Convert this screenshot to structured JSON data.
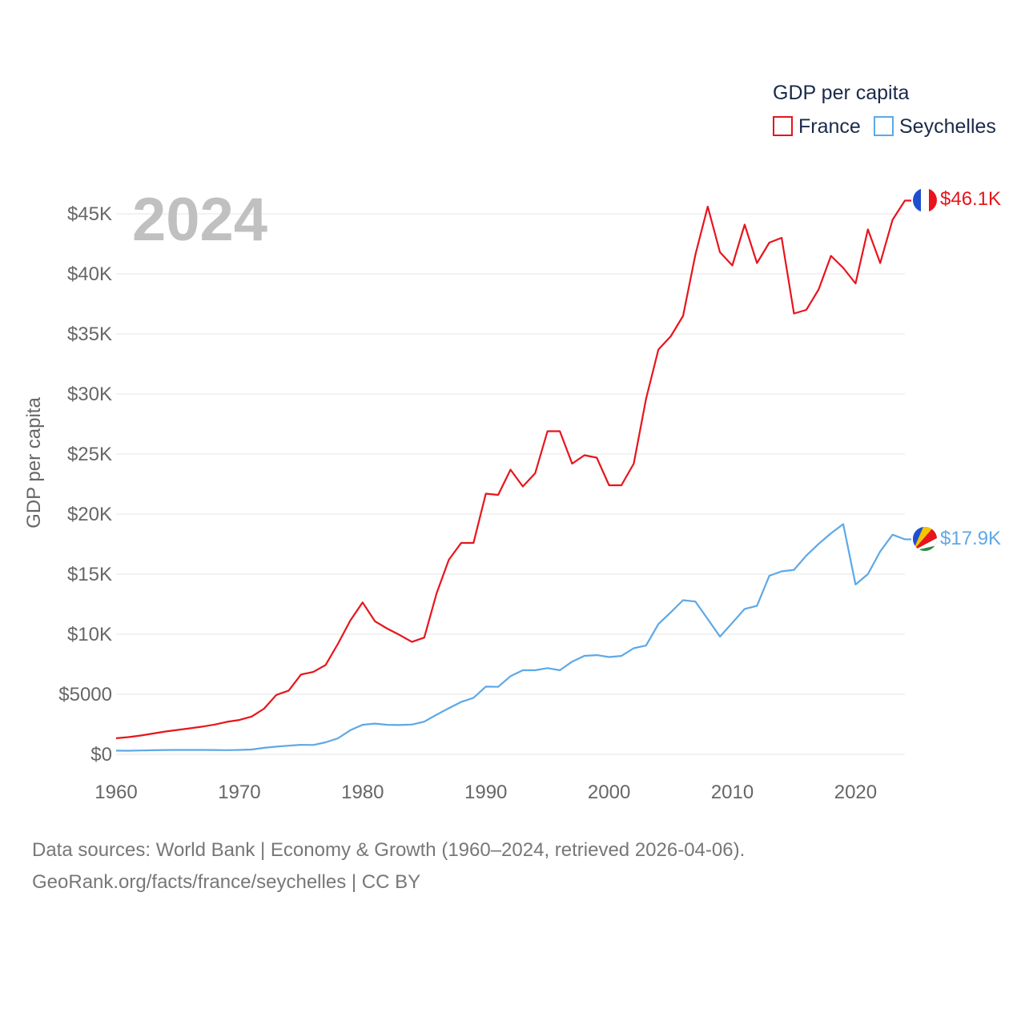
{
  "colors": {
    "france": "#e8141c",
    "seychelles": "#5ea8e6",
    "grid": "#e6e6e6",
    "tick": "#666666"
  },
  "legend": {
    "title": "GDP per capita"
  },
  "year_label": "2024",
  "footer": {
    "line1": "Data sources: World Bank | Economy & Growth (1960–2024, retrieved 2026-04-06).",
    "line2": "GeoRank.org/facts/france/seychelles | CC BY"
  },
  "chart_data": {
    "type": "line",
    "title": "",
    "xlabel": "",
    "ylabel": "GDP per capita",
    "xlim": [
      1960,
      2024
    ],
    "ylim": [
      0,
      47000
    ],
    "x_ticks": [
      1960,
      1970,
      1980,
      1990,
      2000,
      2010,
      2020
    ],
    "y_ticks": [
      {
        "value": 0,
        "label": "$0"
      },
      {
        "value": 5000,
        "label": "$5000"
      },
      {
        "value": 10000,
        "label": "$10K"
      },
      {
        "value": 15000,
        "label": "$15K"
      },
      {
        "value": 20000,
        "label": "$20K"
      },
      {
        "value": 25000,
        "label": "$25K"
      },
      {
        "value": 30000,
        "label": "$30K"
      },
      {
        "value": 35000,
        "label": "$35K"
      },
      {
        "value": 40000,
        "label": "$40K"
      },
      {
        "value": 45000,
        "label": "$45K"
      }
    ],
    "x": [
      1960,
      1961,
      1962,
      1963,
      1964,
      1965,
      1966,
      1967,
      1968,
      1969,
      1970,
      1971,
      1972,
      1973,
      1974,
      1975,
      1976,
      1977,
      1978,
      1979,
      1980,
      1981,
      1982,
      1983,
      1984,
      1985,
      1986,
      1987,
      1988,
      1989,
      1990,
      1991,
      1992,
      1993,
      1994,
      1995,
      1996,
      1997,
      1998,
      1999,
      2000,
      2001,
      2002,
      2003,
      2004,
      2005,
      2006,
      2007,
      2008,
      2009,
      2010,
      2011,
      2012,
      2013,
      2014,
      2015,
      2016,
      2017,
      2018,
      2019,
      2020,
      2021,
      2022,
      2023,
      2024
    ],
    "series": [
      {
        "name": "France",
        "color": "#e8141c",
        "end_label": "$46.1K",
        "values": [
          1340,
          1430,
          1570,
          1730,
          1900,
          2030,
          2170,
          2310,
          2480,
          2710,
          2860,
          3150,
          3800,
          4950,
          5310,
          6650,
          6860,
          7440,
          9200,
          11130,
          12650,
          11080,
          10470,
          9940,
          9360,
          9720,
          13400,
          16200,
          17600,
          17600,
          21700,
          21600,
          23700,
          22300,
          23400,
          26900,
          26900,
          24200,
          24900,
          24700,
          22400,
          22400,
          24200,
          29600,
          33700,
          34800,
          36500,
          41600,
          45600,
          41800,
          40700,
          44100,
          40900,
          42600,
          43000,
          36700,
          37000,
          38700,
          41500,
          40500,
          39200,
          43700,
          40900,
          44500,
          46100
        ]
      },
      {
        "name": "Seychelles",
        "color": "#5ea8e6",
        "end_label": "$17.9K",
        "values": [
          310,
          300,
          320,
          340,
          360,
          370,
          370,
          370,
          360,
          350,
          370,
          400,
          540,
          640,
          720,
          790,
          780,
          1000,
          1330,
          2010,
          2460,
          2560,
          2460,
          2440,
          2480,
          2720,
          3300,
          3840,
          4360,
          4700,
          5640,
          5620,
          6510,
          7000,
          7000,
          7180,
          7000,
          7720,
          8200,
          8260,
          8100,
          8190,
          8830,
          9060,
          10850,
          11820,
          12830,
          12720,
          11260,
          9800,
          10950,
          12110,
          12360,
          14870,
          15230,
          15360,
          16550,
          17520,
          18400,
          19170,
          14140,
          15000,
          16890,
          18290,
          17900
        ]
      }
    ]
  }
}
